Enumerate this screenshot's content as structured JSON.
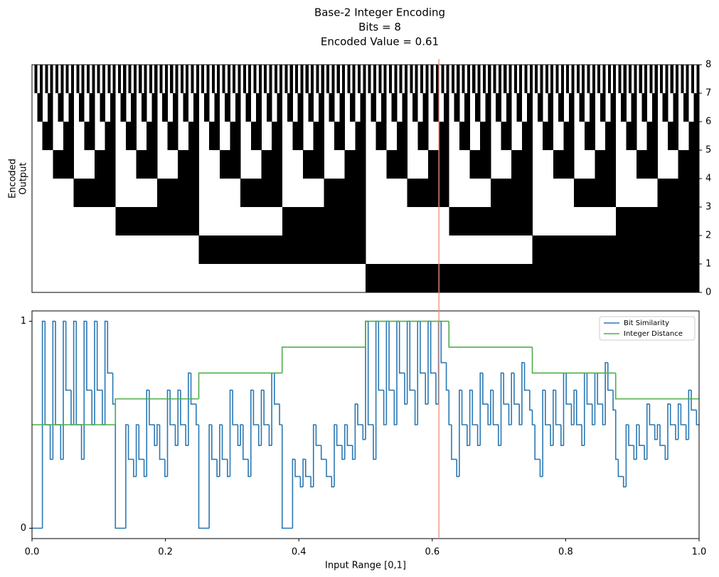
{
  "chart_data": [
    {
      "type": "heatmap",
      "title": [
        "Base-2 Integer Encoding",
        "Bits = 8",
        "Encoded Value = 0.61"
      ],
      "ylabel": [
        "Encoded",
        "Output"
      ],
      "colors": [
        "#ffffff",
        "#000000"
      ],
      "ylim": [
        0,
        8
      ],
      "yticks": [
        0,
        1,
        2,
        3,
        4,
        5,
        6,
        7,
        8
      ],
      "codes": [
        0,
        1,
        2,
        3,
        4,
        5,
        6,
        7,
        8,
        9,
        10,
        11,
        12,
        13,
        14,
        15,
        16,
        17,
        18,
        19,
        20,
        21,
        22,
        23,
        24,
        25,
        26,
        27,
        28,
        29,
        30,
        31,
        32,
        33,
        34,
        35,
        36,
        37,
        38,
        39,
        40,
        41,
        42,
        43,
        44,
        45,
        46,
        47,
        48,
        49,
        50,
        51,
        52,
        53,
        54,
        55,
        56,
        57,
        58,
        59,
        60,
        61,
        62,
        63,
        64,
        65,
        66,
        67,
        68,
        69,
        70,
        71,
        72,
        73,
        74,
        75,
        76,
        77,
        78,
        79,
        80,
        81,
        82,
        83,
        84,
        85,
        86,
        87,
        88,
        89,
        90,
        91,
        92,
        93,
        94,
        95,
        96,
        97,
        98,
        99,
        100,
        101,
        102,
        103,
        104,
        105,
        106,
        107,
        108,
        109,
        110,
        111,
        112,
        113,
        114,
        115,
        116,
        117,
        118,
        119,
        120,
        121,
        122,
        123,
        124,
        125,
        126,
        127,
        128,
        129,
        130,
        131,
        132,
        133,
        134,
        135,
        136,
        137,
        138,
        139,
        140,
        141,
        142,
        143,
        144,
        145,
        146,
        147,
        148,
        149,
        150,
        151,
        152,
        153,
        154,
        155,
        156,
        157,
        158,
        159,
        160,
        161,
        162,
        163,
        164,
        165,
        166,
        167,
        168,
        169,
        170,
        171,
        172,
        173,
        174,
        175,
        176,
        177,
        178,
        179,
        180,
        181,
        182,
        183,
        184,
        185,
        186,
        187,
        188,
        189,
        190,
        191,
        192,
        193,
        194,
        195,
        196,
        197,
        198,
        199,
        200,
        201,
        202,
        203,
        204,
        205,
        206,
        207,
        208,
        209,
        210,
        211,
        212,
        213,
        214,
        215,
        216,
        217,
        218,
        219,
        220,
        221,
        222,
        223,
        224,
        225,
        226,
        227,
        228,
        229,
        230,
        231,
        232,
        233,
        234,
        235,
        236,
        237,
        238,
        239,
        240,
        241,
        242,
        243,
        244,
        245,
        246,
        247,
        248,
        249,
        250,
        251,
        252,
        253,
        254,
        255
      ]
    },
    {
      "type": "line",
      "xlabel": "Input Range [0,1]",
      "xlim": [
        0,
        1
      ],
      "ylim": [
        -0.05,
        1.05
      ],
      "xticks": [
        {
          "value": 0,
          "label": "0.0"
        },
        {
          "value": 0.2,
          "label": "0.2"
        },
        {
          "value": 0.4,
          "label": "0.4"
        },
        {
          "value": 0.6,
          "label": "0.6"
        },
        {
          "value": 0.8,
          "label": "0.8"
        },
        {
          "value": 1,
          "label": "1.0"
        }
      ],
      "yticks": [
        0,
        1
      ],
      "marker_x": 0.61,
      "marker_color": "#f2907a",
      "legend": "upper right",
      "series": [
        {
          "name": "Bit Similarity",
          "color": "#2a78b3",
          "x": [
            0,
            0.0039,
            0.0078,
            0.0117,
            0.0156,
            0.0195,
            0.0234,
            0.0273,
            0.0313,
            0.0352,
            0.0391,
            0.043,
            0.0469,
            0.0508,
            0.0547,
            0.0586,
            0.0625,
            0.0664,
            0.0703,
            0.0742,
            0.0781,
            0.082,
            0.0859,
            0.0898,
            0.0938,
            0.0977,
            0.1016,
            0.1055,
            0.1094,
            0.1133,
            0.1172,
            0.1211,
            0.125,
            0.1289,
            0.1328,
            0.1367,
            0.1406,
            0.1445,
            0.1484,
            0.1523,
            0.1563,
            0.1602,
            0.1641,
            0.168,
            0.1719,
            0.1758,
            0.1797,
            0.1836,
            0.1875,
            0.1914,
            0.1953,
            0.1992,
            0.2031,
            0.207,
            0.2109,
            0.2148,
            0.2188,
            0.2227,
            0.2266,
            0.2305,
            0.2344,
            0.2383,
            0.2422,
            0.2461,
            0.25,
            0.2539,
            0.2578,
            0.2617,
            0.2656,
            0.2695,
            0.2734,
            0.2773,
            0.2813,
            0.2852,
            0.2891,
            0.293,
            0.2969,
            0.3008,
            0.3047,
            0.3086,
            0.3125,
            0.3164,
            0.3203,
            0.3242,
            0.3281,
            0.332,
            0.3359,
            0.3398,
            0.3438,
            0.3477,
            0.3516,
            0.3555,
            0.3594,
            0.3633,
            0.3672,
            0.3711,
            0.375,
            0.3789,
            0.3828,
            0.3867,
            0.3906,
            0.3945,
            0.3984,
            0.4023,
            0.4063,
            0.4102,
            0.4141,
            0.418,
            0.4219,
            0.4258,
            0.4297,
            0.4336,
            0.4375,
            0.4414,
            0.4453,
            0.4492,
            0.4531,
            0.457,
            0.4609,
            0.4648,
            0.4688,
            0.4727,
            0.4766,
            0.4805,
            0.4844,
            0.4883,
            0.4922,
            0.4961,
            0.5,
            0.5039,
            0.5078,
            0.5117,
            0.5156,
            0.5195,
            0.5234,
            0.5273,
            0.5313,
            0.5352,
            0.5391,
            0.543,
            0.5469,
            0.5508,
            0.5547,
            0.5586,
            0.5625,
            0.5664,
            0.5703,
            0.5742,
            0.5781,
            0.582,
            0.5859,
            0.5898,
            0.5938,
            0.5977,
            0.6016,
            0.6055,
            0.6094,
            0.6133,
            0.6172,
            0.6211,
            0.625,
            0.6289,
            0.6328,
            0.6367,
            0.6406,
            0.6445,
            0.6484,
            0.6523,
            0.6563,
            0.6602,
            0.6641,
            0.668,
            0.6719,
            0.6758,
            0.6797,
            0.6836,
            0.6875,
            0.6914,
            0.6953,
            0.6992,
            0.7031,
            0.707,
            0.7109,
            0.7148,
            0.7188,
            0.7227,
            0.7266,
            0.7305,
            0.7344,
            0.7383,
            0.7422,
            0.7461,
            0.75,
            0.7539,
            0.7578,
            0.7617,
            0.7656,
            0.7695,
            0.7734,
            0.7773,
            0.7813,
            0.7852,
            0.7891,
            0.793,
            0.7969,
            0.8008,
            0.8047,
            0.8086,
            0.8125,
            0.8164,
            0.8203,
            0.8242,
            0.8281,
            0.832,
            0.8359,
            0.8398,
            0.8438,
            0.8477,
            0.8516,
            0.8555,
            0.8594,
            0.8633,
            0.8672,
            0.8711,
            0.875,
            0.8789,
            0.8828,
            0.8867,
            0.8906,
            0.8945,
            0.8984,
            0.9023,
            0.9063,
            0.9102,
            0.9141,
            0.918,
            0.9219,
            0.9258,
            0.9297,
            0.9336,
            0.9375,
            0.9414,
            0.9453,
            0.9492,
            0.9531,
            0.957,
            0.9609,
            0.9648,
            0.9688,
            0.9727,
            0.9766,
            0.9805,
            0.9844,
            0.9883,
            0.9922,
            0.9961
          ],
          "values": [
            0,
            0,
            0,
            0,
            1,
            0.5,
            0.5,
            0.333,
            1,
            0.5,
            0.5,
            0.333,
            1,
            0.667,
            0.667,
            0.5,
            1,
            0.5,
            0.5,
            0.333,
            1,
            0.667,
            0.667,
            0.5,
            1,
            0.667,
            0.667,
            0.5,
            1,
            0.75,
            0.75,
            0.6,
            0,
            0,
            0,
            0,
            0.5,
            0.333,
            0.333,
            0.25,
            0.5,
            0.333,
            0.333,
            0.25,
            0.667,
            0.5,
            0.5,
            0.4,
            0.5,
            0.333,
            0.333,
            0.25,
            0.667,
            0.5,
            0.5,
            0.4,
            0.667,
            0.5,
            0.5,
            0.4,
            0.75,
            0.6,
            0.6,
            0.5,
            0,
            0,
            0,
            0,
            0.5,
            0.333,
            0.333,
            0.25,
            0.5,
            0.333,
            0.333,
            0.25,
            0.667,
            0.5,
            0.5,
            0.4,
            0.5,
            0.333,
            0.333,
            0.25,
            0.667,
            0.5,
            0.5,
            0.4,
            0.667,
            0.5,
            0.5,
            0.4,
            0.75,
            0.6,
            0.6,
            0.5,
            0,
            0,
            0,
            0,
            0.333,
            0.25,
            0.25,
            0.2,
            0.333,
            0.25,
            0.25,
            0.2,
            0.5,
            0.4,
            0.4,
            0.333,
            0.333,
            0.25,
            0.25,
            0.2,
            0.5,
            0.4,
            0.4,
            0.333,
            0.5,
            0.4,
            0.4,
            0.333,
            0.6,
            0.5,
            0.5,
            0.429,
            1,
            0.5,
            0.5,
            0.333,
            1,
            0.667,
            0.667,
            0.5,
            1,
            0.667,
            0.667,
            0.5,
            1,
            0.75,
            0.75,
            0.6,
            1,
            0.667,
            0.667,
            0.5,
            1,
            0.75,
            0.75,
            0.6,
            1,
            0.75,
            0.75,
            0.6,
            1,
            0.8,
            0.8,
            0.667,
            0.5,
            0.333,
            0.333,
            0.25,
            0.667,
            0.5,
            0.5,
            0.4,
            0.667,
            0.5,
            0.5,
            0.4,
            0.75,
            0.6,
            0.6,
            0.5,
            0.667,
            0.5,
            0.5,
            0.4,
            0.75,
            0.6,
            0.6,
            0.5,
            0.75,
            0.6,
            0.6,
            0.5,
            0.8,
            0.667,
            0.667,
            0.571,
            0.5,
            0.333,
            0.333,
            0.25,
            0.667,
            0.5,
            0.5,
            0.4,
            0.667,
            0.5,
            0.5,
            0.4,
            0.75,
            0.6,
            0.6,
            0.5,
            0.667,
            0.5,
            0.5,
            0.4,
            0.75,
            0.6,
            0.6,
            0.5,
            0.75,
            0.6,
            0.6,
            0.5,
            0.8,
            0.667,
            0.667,
            0.571,
            0.333,
            0.25,
            0.25,
            0.2,
            0.5,
            0.4,
            0.4,
            0.333,
            0.5,
            0.4,
            0.4,
            0.333,
            0.6,
            0.5,
            0.5,
            0.429,
            0.5,
            0.4,
            0.4,
            0.333,
            0.6,
            0.5,
            0.5,
            0.429,
            0.6,
            0.5,
            0.5,
            0.429,
            0.667,
            0.571,
            0.571,
            0.5
          ]
        },
        {
          "name": "Integer Distance",
          "color": "#4daf4a",
          "x": [
            0,
            0.125,
            0.25,
            0.375,
            0.5,
            0.625,
            0.75,
            0.875
          ],
          "values": [
            0.5,
            0.625,
            0.75,
            0.875,
            1,
            0.875,
            0.75,
            0.625
          ]
        }
      ]
    }
  ]
}
